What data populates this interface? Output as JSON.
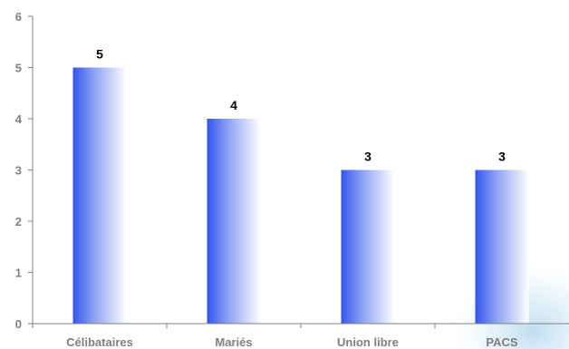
{
  "chart_data": {
    "type": "bar",
    "categories": [
      "Célibataires",
      "Mariés",
      "Union libre",
      "PACS"
    ],
    "values": [
      5,
      4,
      3,
      3
    ],
    "data_labels": [
      "5",
      "4",
      "3",
      "3"
    ],
    "title": "",
    "xlabel": "",
    "ylabel": "",
    "ylim": [
      0,
      6
    ],
    "yticks": [
      "0",
      "1",
      "2",
      "3",
      "4",
      "5",
      "6"
    ],
    "grid": false,
    "legend": "none"
  },
  "colors": {
    "bar_start": "#3355ee",
    "bar_end": "#ffffff",
    "axis": "#808080",
    "tick_text": "#808080",
    "data_label": "#000000"
  }
}
